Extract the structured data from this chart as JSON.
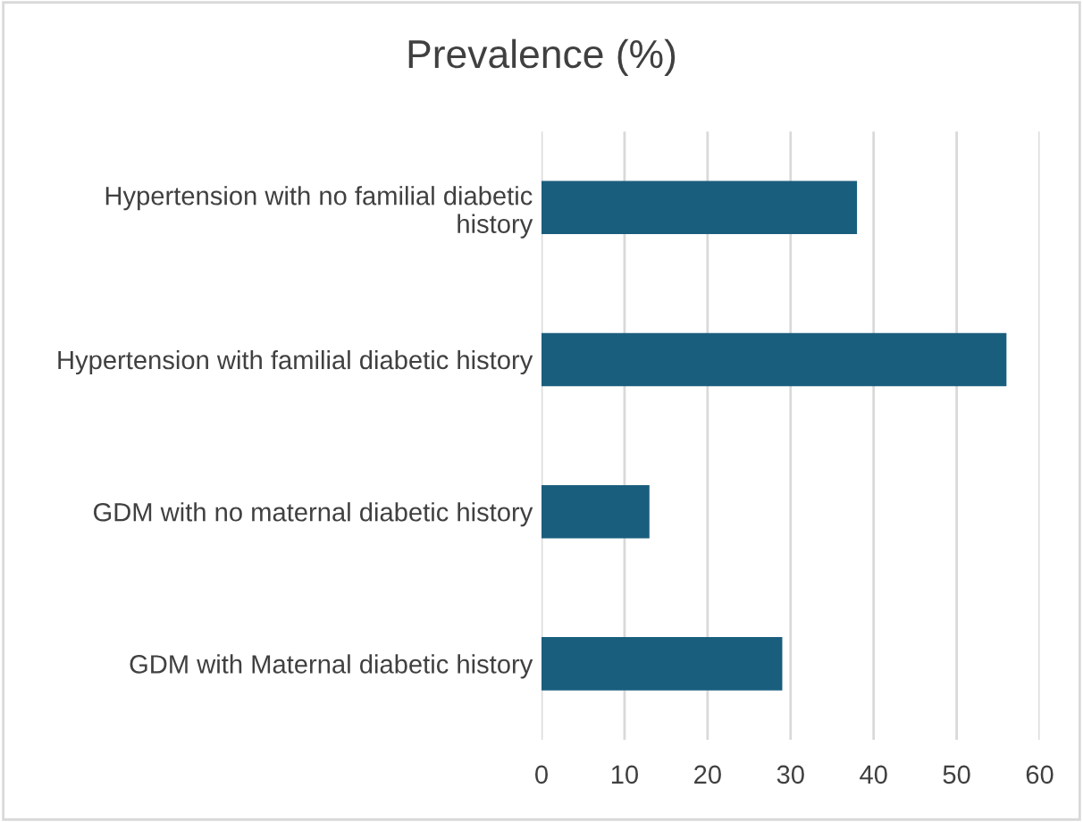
{
  "chart_data": {
    "type": "bar",
    "orientation": "horizontal",
    "title": "Prevalence (%)",
    "categories": [
      "Hypertension with no familial diabetic\nhistory",
      "Hypertension with familial diabetic history",
      "GDM with no maternal diabetic history",
      "GDM with Maternal diabetic history"
    ],
    "values": [
      38,
      56,
      13,
      29
    ],
    "color": "#1a5e7e",
    "xlim": [
      0,
      60
    ],
    "xticks": [
      0,
      10,
      20,
      30,
      40,
      50,
      60
    ],
    "grid": "x"
  }
}
